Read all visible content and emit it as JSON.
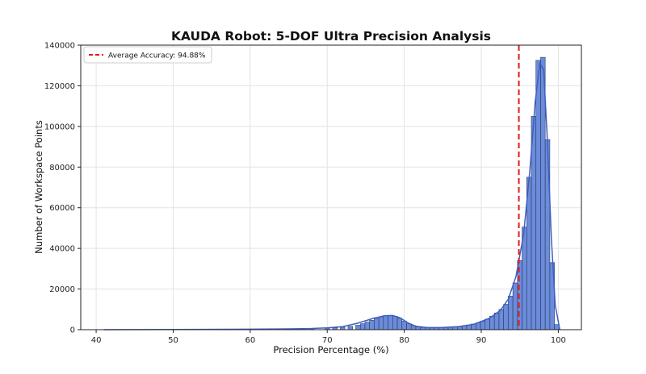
{
  "chart_data": {
    "type": "bar",
    "title": "KAUDA Robot: 5-DOF Ultra Precision Analysis",
    "xlabel": "Precision Percentage (%)",
    "ylabel": "Number of Workspace Points",
    "xlim": [
      38,
      103
    ],
    "ylim": [
      0,
      140000
    ],
    "xticks": [
      40,
      50,
      60,
      70,
      80,
      90,
      100
    ],
    "yticks": [
      0,
      20000,
      40000,
      60000,
      80000,
      100000,
      120000,
      140000
    ],
    "grid": true,
    "legend_position": "top-left",
    "bar_color": "#5b7fd6",
    "bar_edge_color": "#2a3a66",
    "kde_color": "#3f5fc4",
    "reference_line": {
      "x": 94.88,
      "label": "Average Accuracy: 94.88%",
      "color": "#e31a1c",
      "style": "dashed"
    },
    "bins": [
      [
        41.0,
        0
      ],
      [
        55.0,
        200
      ],
      [
        62.0,
        300
      ],
      [
        66.0,
        400
      ],
      [
        68.0,
        500
      ],
      [
        70.0,
        700
      ],
      [
        71.0,
        900
      ],
      [
        72.0,
        1200
      ],
      [
        73.0,
        1600
      ],
      [
        74.0,
        2200
      ],
      [
        74.6,
        2900
      ],
      [
        75.2,
        3700
      ],
      [
        75.8,
        4600
      ],
      [
        76.4,
        5500
      ],
      [
        77.0,
        6300
      ],
      [
        77.6,
        6900
      ],
      [
        78.2,
        7000
      ],
      [
        78.8,
        6600
      ],
      [
        79.4,
        5600
      ],
      [
        80.0,
        4200
      ],
      [
        80.6,
        2900
      ],
      [
        81.2,
        2000
      ],
      [
        81.8,
        1400
      ],
      [
        82.4,
        1100
      ],
      [
        83.0,
        1000
      ],
      [
        83.6,
        1000
      ],
      [
        84.2,
        1000
      ],
      [
        84.8,
        1100
      ],
      [
        85.4,
        1200
      ],
      [
        86.0,
        1300
      ],
      [
        86.6,
        1400
      ],
      [
        87.2,
        1600
      ],
      [
        87.8,
        1900
      ],
      [
        88.4,
        2300
      ],
      [
        89.0,
        2800
      ],
      [
        89.6,
        3400
      ],
      [
        90.2,
        4200
      ],
      [
        90.8,
        5200
      ],
      [
        91.4,
        6600
      ],
      [
        92.0,
        8200
      ],
      [
        92.6,
        10000
      ],
      [
        93.2,
        12500
      ],
      [
        93.8,
        16500
      ],
      [
        94.4,
        23000
      ],
      [
        95.0,
        34000
      ],
      [
        95.6,
        50500
      ],
      [
        96.2,
        75000
      ],
      [
        96.8,
        105000
      ],
      [
        97.4,
        132500
      ],
      [
        98.0,
        134000
      ],
      [
        98.6,
        93500
      ],
      [
        99.2,
        33000
      ],
      [
        99.8,
        2500
      ]
    ],
    "bin_width": 0.6,
    "kde": [
      [
        41,
        0
      ],
      [
        50,
        100
      ],
      [
        60,
        250
      ],
      [
        65,
        400
      ],
      [
        68,
        600
      ],
      [
        70,
        900
      ],
      [
        72,
        1500
      ],
      [
        74,
        3200
      ],
      [
        76,
        5600
      ],
      [
        77.5,
        6900
      ],
      [
        78.5,
        7000
      ],
      [
        79.5,
        5800
      ],
      [
        80.5,
        3300
      ],
      [
        81.5,
        1700
      ],
      [
        83,
        1050
      ],
      [
        85,
        1100
      ],
      [
        87,
        1500
      ],
      [
        89,
        2600
      ],
      [
        91,
        5500
      ],
      [
        92.5,
        9500
      ],
      [
        93.5,
        15000
      ],
      [
        94.5,
        26000
      ],
      [
        95.5,
        47000
      ],
      [
        96.3,
        78000
      ],
      [
        97,
        112000
      ],
      [
        97.6,
        131000
      ],
      [
        98.1,
        128000
      ],
      [
        98.6,
        92000
      ],
      [
        99.1,
        45000
      ],
      [
        99.6,
        12000
      ],
      [
        100.2,
        0
      ]
    ]
  }
}
